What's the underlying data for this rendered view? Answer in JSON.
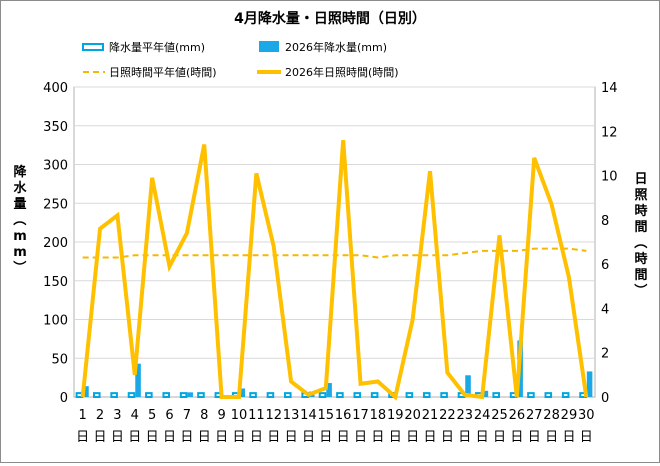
{
  "chart_data": {
    "type": "bar+line",
    "title": "4月降水量・日照時間（日別）",
    "ylabel_left": "降水量（mm）",
    "ylabel_right": "日照時間（時間）",
    "ylim_left": [
      0,
      400
    ],
    "ylim_right": [
      0,
      14
    ],
    "yticks_left": [
      "0",
      "50",
      "100",
      "150",
      "200",
      "250",
      "300",
      "350",
      "400"
    ],
    "yticks_right": [
      "0",
      "2",
      "4",
      "6",
      "8",
      "10",
      "12",
      "14"
    ],
    "day_suffix": "日",
    "categories": [
      "1",
      "2",
      "3",
      "4",
      "5",
      "6",
      "7",
      "8",
      "9",
      "10",
      "11",
      "12",
      "13",
      "14",
      "15",
      "16",
      "17",
      "18",
      "19",
      "20",
      "21",
      "22",
      "23",
      "24",
      "25",
      "26",
      "27",
      "28",
      "29",
      "30"
    ],
    "series": [
      {
        "name": "降水量平年値(mm)",
        "kind": "bar-outline",
        "axis": "left",
        "color": "#00a6e0",
        "values": [
          5,
          5,
          5,
          5,
          5,
          5,
          5,
          5,
          5,
          5,
          5,
          5,
          5,
          5,
          5,
          5,
          5,
          5,
          5,
          5,
          5,
          5,
          5,
          5,
          5,
          5,
          5,
          5,
          5,
          5
        ]
      },
      {
        "name": "2026年降水量(mm)",
        "kind": "bar",
        "axis": "left",
        "color": "#1aa8e6",
        "values": [
          14,
          0,
          0,
          43,
          0,
          0,
          6,
          0,
          0,
          11,
          0,
          0,
          0,
          7,
          18,
          0,
          0,
          0,
          0,
          0,
          0,
          0,
          28,
          8,
          0,
          73,
          0,
          0,
          0,
          33
        ]
      },
      {
        "name": "日照時間平年値(時間)",
        "kind": "dashed-line",
        "axis": "right",
        "color": "#f5b800",
        "values": [
          6.3,
          6.3,
          6.3,
          6.4,
          6.4,
          6.4,
          6.4,
          6.4,
          6.4,
          6.4,
          6.4,
          6.4,
          6.4,
          6.4,
          6.4,
          6.4,
          6.4,
          6.3,
          6.4,
          6.4,
          6.4,
          6.4,
          6.5,
          6.6,
          6.6,
          6.6,
          6.7,
          6.7,
          6.7,
          6.6
        ]
      },
      {
        "name": "2026年日照時間(時間)",
        "kind": "line",
        "axis": "right",
        "color": "#ffc000",
        "values": [
          0,
          7.6,
          8.2,
          1.0,
          9.9,
          5.9,
          7.4,
          11.4,
          0,
          0,
          10.1,
          6.8,
          0.7,
          0.1,
          0.4,
          11.6,
          0.6,
          0.7,
          0,
          3.5,
          10.2,
          1.1,
          0.1,
          0,
          7.3,
          0,
          10.8,
          8.7,
          5.4,
          0
        ]
      }
    ],
    "legend_position": "top"
  }
}
